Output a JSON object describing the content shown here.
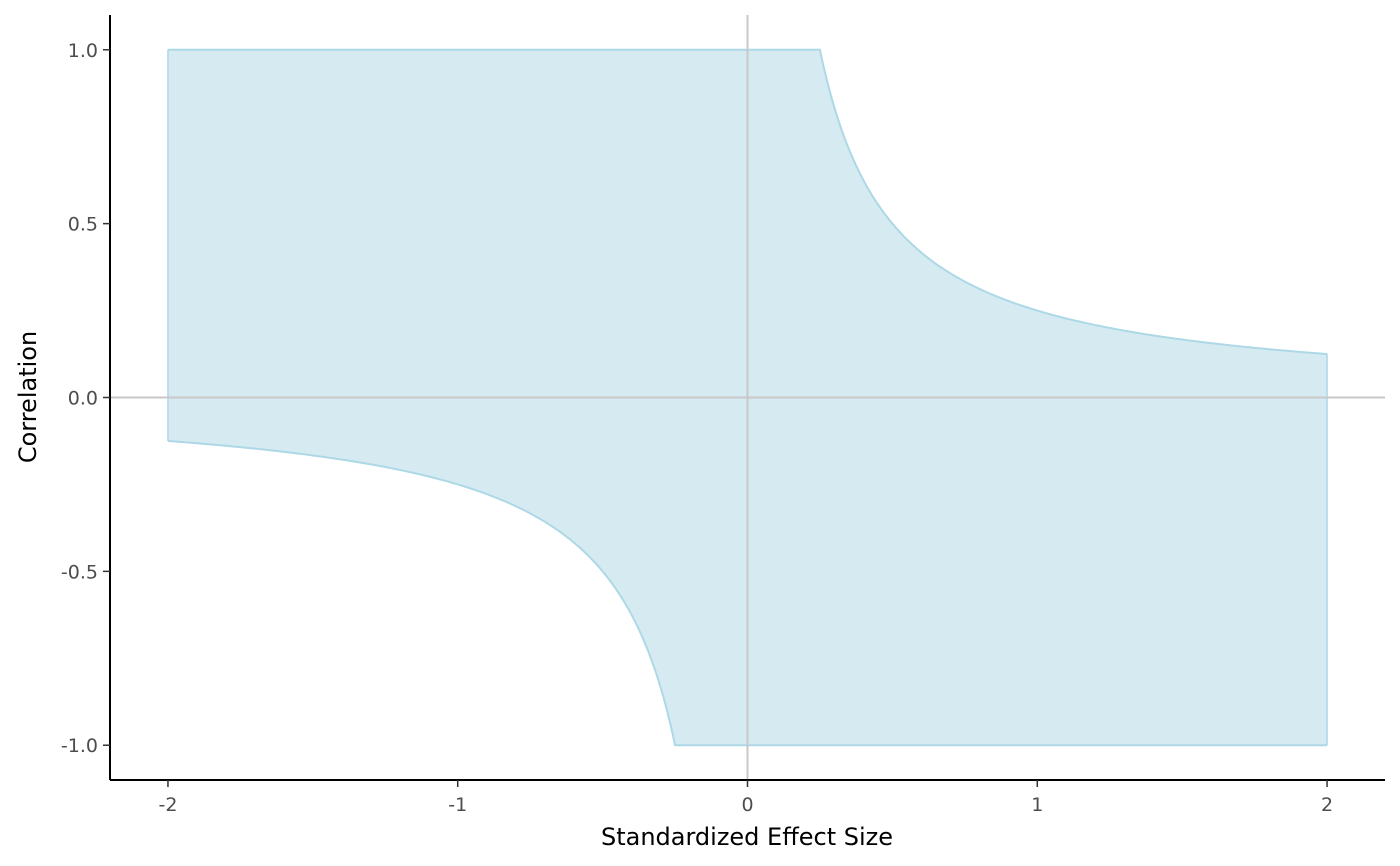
{
  "chart_data": {
    "type": "area",
    "title": "",
    "xlabel": "Standardized Effect Size",
    "ylabel": "Correlation",
    "xlim": [
      -2.2,
      2.2
    ],
    "ylim": [
      -1.1,
      1.1
    ],
    "x_ticks": [
      -2,
      -1,
      0,
      1,
      2
    ],
    "x_tick_labels": [
      "-2",
      "-1",
      "0",
      "1",
      "2"
    ],
    "y_ticks": [
      -1.0,
      -0.5,
      0.0,
      0.5,
      1.0
    ],
    "y_tick_labels": [
      "-1.0",
      "-0.5",
      "0.0",
      "0.5",
      "1.0"
    ],
    "grid": false,
    "reference_lines": {
      "x": 0,
      "y": 0,
      "color": "#c8c8c8"
    },
    "fill_color": "#d6eaf2",
    "line_color": "#add8e6",
    "series": [
      {
        "x": [
          -2.0,
          -1.75,
          -1.5,
          -1.25,
          -1.0,
          -0.875,
          -0.75,
          -0.625,
          -0.5,
          -0.4,
          -0.3,
          -0.25,
          0.25,
          0.3,
          0.4,
          0.5,
          0.625,
          0.75,
          0.875,
          1.0,
          1.25,
          1.5,
          1.75,
          2.0
        ],
        "upper": [
          1.0,
          1.0,
          1.0,
          1.0,
          1.0,
          1.0,
          1.0,
          1.0,
          1.0,
          1.0,
          1.0,
          1.0,
          1.0,
          0.833,
          0.625,
          0.5,
          0.4,
          0.333,
          0.286,
          0.25,
          0.2,
          0.167,
          0.143,
          0.125
        ],
        "lower": [
          -0.125,
          -0.143,
          -0.167,
          -0.2,
          -0.25,
          -0.286,
          -0.333,
          -0.4,
          -0.5,
          -0.625,
          -0.833,
          -1.0,
          -1.0,
          -1.0,
          -1.0,
          -1.0,
          -1.0,
          -1.0,
          -1.0,
          -1.0,
          -1.0,
          -1.0,
          -1.0,
          -1.0
        ]
      }
    ]
  }
}
